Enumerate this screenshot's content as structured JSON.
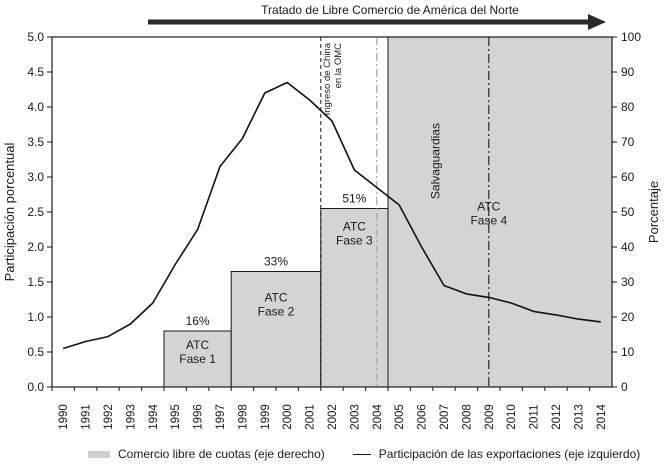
{
  "chart_data": {
    "type": "line+bar",
    "top_arrow_label": "Tratado de Libre Comercio de América del Norte",
    "ylabel_left": "Participación porcentual",
    "ylabel_right": "Porcentaje",
    "ylim_left": [
      0,
      5.0
    ],
    "ylim_right": [
      0,
      100
    ],
    "yticks_left": [
      "0.0",
      "0.5",
      "1.0",
      "1.5",
      "2.0",
      "2.5",
      "3.0",
      "3.5",
      "4.0",
      "4.5",
      "5.0"
    ],
    "yticks_right": [
      "0",
      "10",
      "20",
      "30",
      "40",
      "50",
      "60",
      "70",
      "80",
      "90",
      "100"
    ],
    "categories": [
      "1990",
      "1991",
      "1992",
      "1993",
      "1994",
      "1995",
      "1996",
      "1997",
      "1998",
      "1999",
      "2000",
      "2001",
      "2002",
      "2003",
      "2004",
      "2005",
      "2006",
      "2007",
      "2008",
      "2009",
      "2010",
      "2011",
      "2012",
      "2013",
      "2014"
    ],
    "series": [
      {
        "name": "Participación de las exportaciones (eje izquierdo)",
        "axis": "left",
        "type": "line",
        "values": [
          0.55,
          0.65,
          0.72,
          0.9,
          1.2,
          1.75,
          2.25,
          3.15,
          3.55,
          4.2,
          4.35,
          4.1,
          3.8,
          3.1,
          2.85,
          2.6,
          2.0,
          1.45,
          1.33,
          1.28,
          1.2,
          1.08,
          1.03,
          0.97,
          0.93
        ]
      },
      {
        "name": "Comercio libre de cuotas (eje derecho)",
        "axis": "right",
        "type": "step-bar",
        "segments": [
          {
            "start": 1994.5,
            "end": 1997.5,
            "value": 16,
            "label": "16%",
            "phase": "ATC\nFase 1"
          },
          {
            "start": 1997.5,
            "end": 2001.5,
            "value": 33,
            "label": "33%",
            "phase": "ATC\nFase 2"
          },
          {
            "start": 2001.5,
            "end": 2004.5,
            "value": 51,
            "label": "51%",
            "phase": "ATC\nFase 3"
          },
          {
            "start": 2004.5,
            "end": 2014.5,
            "value": 100,
            "label": "",
            "phase": "ATC\nFase 4"
          }
        ]
      }
    ],
    "annotations": [
      {
        "x": 2001.5,
        "style": "dashed",
        "text": "Ingreso de China en la OMC"
      },
      {
        "x": 2004.0,
        "style": "dashdot-gray",
        "text": ""
      },
      {
        "x": 2004.5,
        "style": "none",
        "text": "Salvaguardias"
      },
      {
        "x": 2009.0,
        "style": "dashdot",
        "text": ""
      }
    ],
    "legend": [
      {
        "symbol": "bar",
        "label": "Comercio libre de cuotas (eje derecho)"
      },
      {
        "symbol": "line",
        "label": "Participación de las exportaciones (eje izquierdo)"
      }
    ]
  }
}
